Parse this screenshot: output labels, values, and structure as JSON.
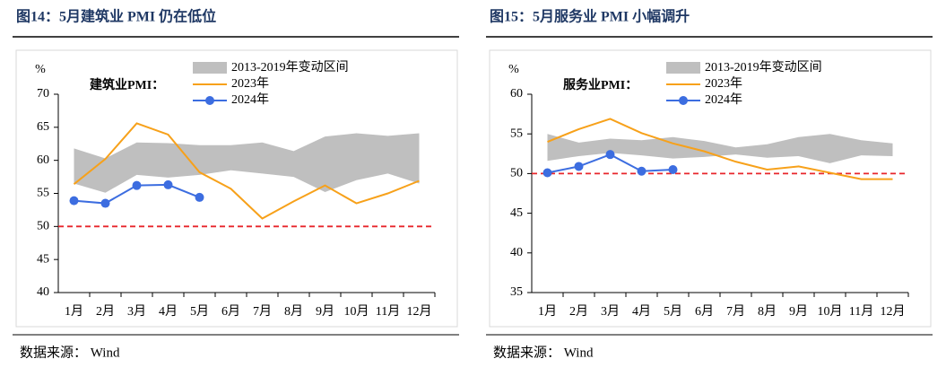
{
  "chart_data": [
    {
      "type": "line",
      "title": "图14：5月建筑业 PMI 仍在低位",
      "unit": "%",
      "annotation": "建筑业PMI：",
      "source": "数据来源： Wind",
      "categories": [
        "1月",
        "2月",
        "3月",
        "4月",
        "5月",
        "6月",
        "7月",
        "8月",
        "9月",
        "10月",
        "11月",
        "12月"
      ],
      "ylim": [
        40,
        70
      ],
      "yticks": [
        40,
        45,
        50,
        55,
        60,
        65,
        70
      ],
      "reference_line": 50,
      "reference_color": "#e8262b",
      "band": {
        "name": "2013-2019年变动区间",
        "color": "#bfbfbf",
        "upper": [
          61.8,
          60.3,
          62.7,
          62.6,
          62.3,
          62.3,
          62.7,
          61.4,
          63.6,
          64.1,
          63.7,
          64.1
        ],
        "lower": [
          56.5,
          55.1,
          57.8,
          57.4,
          57.8,
          58.5,
          58.0,
          57.5,
          55.2,
          57.0,
          58.0,
          56.5
        ]
      },
      "series": [
        {
          "name": "2023年",
          "color": "#f7a11a",
          "marker": false,
          "values": [
            56.4,
            60.2,
            65.6,
            63.9,
            58.2,
            55.7,
            51.2,
            53.8,
            56.2,
            53.5,
            55.0,
            56.9
          ]
        },
        {
          "name": "2024年",
          "color": "#3c6de0",
          "marker": true,
          "values": [
            53.9,
            53.5,
            56.2,
            56.3,
            54.4,
            null,
            null,
            null,
            null,
            null,
            null,
            null
          ]
        }
      ]
    },
    {
      "type": "line",
      "title": "图15：5月服务业 PMI 小幅调升",
      "unit": "%",
      "annotation": "服务业PMI：",
      "source": "数据来源： Wind",
      "categories": [
        "1月",
        "2月",
        "3月",
        "4月",
        "5月",
        "6月",
        "7月",
        "8月",
        "9月",
        "10月",
        "11月",
        "12月"
      ],
      "ylim": [
        35,
        60
      ],
      "yticks": [
        35,
        40,
        45,
        50,
        55,
        60
      ],
      "reference_line": 50,
      "reference_color": "#e8262b",
      "band": {
        "name": "2013-2019年变动区间",
        "color": "#bfbfbf",
        "upper": [
          55.0,
          53.9,
          54.4,
          54.2,
          54.6,
          54.1,
          53.3,
          53.7,
          54.6,
          55.0,
          54.2,
          53.8
        ],
        "lower": [
          51.6,
          52.2,
          52.6,
          52.3,
          51.9,
          52.1,
          52.4,
          52.0,
          52.2,
          51.3,
          52.3,
          52.2
        ]
      },
      "series": [
        {
          "name": "2023年",
          "color": "#f7a11a",
          "marker": false,
          "values": [
            54.0,
            55.6,
            56.9,
            55.1,
            53.8,
            52.8,
            51.5,
            50.5,
            50.9,
            50.1,
            49.3,
            49.3
          ]
        },
        {
          "name": "2024年",
          "color": "#3c6de0",
          "marker": true,
          "values": [
            50.1,
            50.9,
            52.4,
            50.3,
            50.5,
            null,
            null,
            null,
            null,
            null,
            null,
            null
          ]
        }
      ]
    }
  ]
}
